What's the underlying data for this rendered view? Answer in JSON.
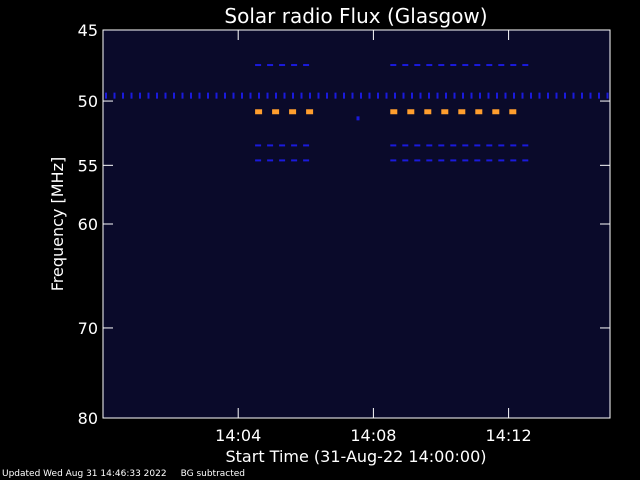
{
  "chart_data": {
    "type": "heatmap",
    "title": "Solar radio Flux (Glasgow)",
    "xlabel": "Start Time (31-Aug-22 14:00:00)",
    "ylabel": "Frequency [MHz]",
    "x_range_minutes": [
      0,
      15
    ],
    "ylim": [
      45,
      80
    ],
    "y_scale": "log",
    "y_direction": "top-down",
    "x_ticks": [
      {
        "minute": 4,
        "label": "14:04"
      },
      {
        "minute": 8,
        "label": "14:08"
      },
      {
        "minute": 12,
        "label": "14:12"
      }
    ],
    "y_ticks": [
      {
        "value": 45,
        "label": "45"
      },
      {
        "value": 50,
        "label": "50"
      },
      {
        "value": 55,
        "label": "55"
      },
      {
        "value": 60,
        "label": "60"
      },
      {
        "value": 70,
        "label": "70"
      },
      {
        "value": 80,
        "label": "80"
      }
    ],
    "background_color": "#0a0a2a",
    "colors": {
      "background": "#0a0a2a",
      "weak": "#1a1adc",
      "strong": "#ff9e2e"
    },
    "bands": [
      {
        "freq": 49.6,
        "t_start": 0,
        "t_end": 15,
        "intensity": "weak",
        "style": "ticks"
      },
      {
        "freq": 47.4,
        "t_start": 4.5,
        "t_end": 6.3,
        "intensity": "weak",
        "style": "dashes"
      },
      {
        "freq": 47.4,
        "t_start": 8.5,
        "t_end": 12.6,
        "intensity": "weak",
        "style": "dashes"
      },
      {
        "freq": 50.8,
        "t_start": 4.5,
        "t_end": 6.3,
        "intensity": "strong",
        "style": "dashes"
      },
      {
        "freq": 50.8,
        "t_start": 8.5,
        "t_end": 12.6,
        "intensity": "strong",
        "style": "dashes"
      },
      {
        "freq": 53.4,
        "t_start": 4.5,
        "t_end": 6.3,
        "intensity": "weak",
        "style": "dashes"
      },
      {
        "freq": 53.4,
        "t_start": 8.5,
        "t_end": 12.6,
        "intensity": "weak",
        "style": "dashes"
      },
      {
        "freq": 54.6,
        "t_start": 4.5,
        "t_end": 6.3,
        "intensity": "weak",
        "style": "dashes"
      },
      {
        "freq": 54.6,
        "t_start": 8.5,
        "t_end": 12.6,
        "intensity": "weak",
        "style": "dashes"
      },
      {
        "freq": 51.3,
        "t_start": 7.5,
        "t_end": 7.6,
        "intensity": "weak",
        "style": "dot"
      }
    ]
  },
  "footer": {
    "updated": "Updated Wed Aug 31 14:46:33 2022",
    "note": "BG subtracted"
  }
}
